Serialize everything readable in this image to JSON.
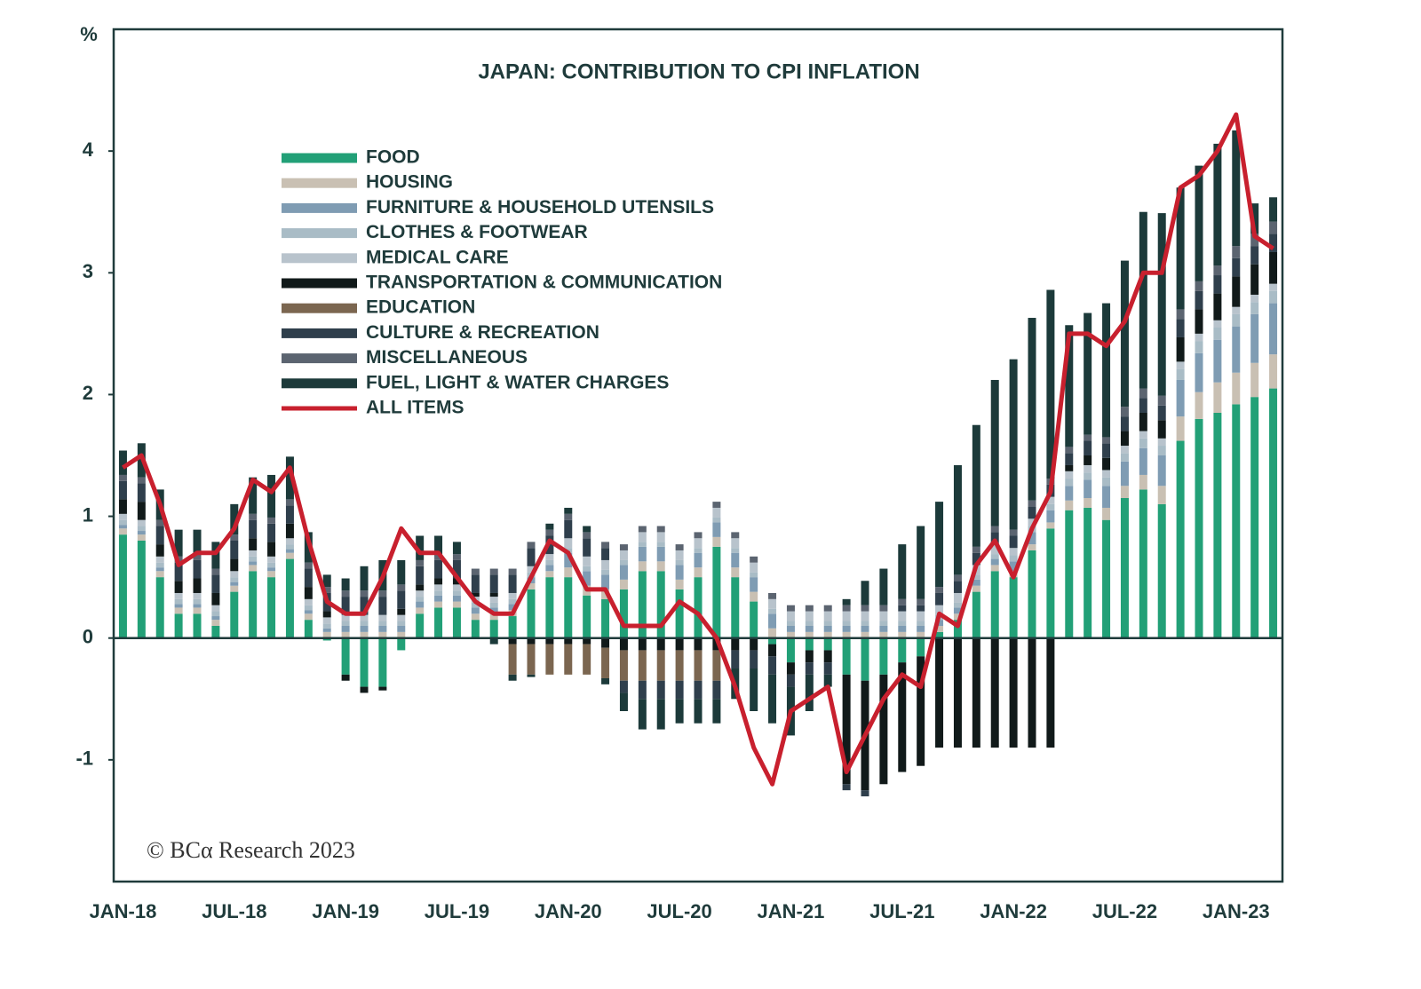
{
  "chart_data": {
    "type": "bar",
    "title": "JAPAN: CONTRIBUTION TO CPI INFLATION",
    "y_unit": "%",
    "source": "© BCα Research 2023",
    "stacked": true,
    "legend": "upper left",
    "ylim": [
      -2,
      5
    ],
    "yticks": [
      -1,
      0,
      1,
      2,
      3,
      4
    ],
    "categories": [
      "JAN-18",
      null,
      null,
      null,
      null,
      null,
      "JUL-18",
      null,
      null,
      null,
      null,
      null,
      "JAN-19",
      null,
      null,
      null,
      null,
      null,
      "JUL-19",
      null,
      null,
      null,
      null,
      null,
      "JAN-20",
      null,
      null,
      null,
      null,
      null,
      "JUL-20",
      null,
      null,
      null,
      null,
      null,
      "JAN-21",
      null,
      null,
      null,
      null,
      null,
      "JUL-21",
      null,
      null,
      null,
      null,
      null,
      "JAN-22",
      null,
      null,
      null,
      null,
      null,
      "JUL-22",
      null,
      null,
      null,
      null,
      null,
      "JAN-23",
      null,
      null
    ],
    "series": [
      {
        "name": "FOOD",
        "type": "bar",
        "color": "#22a077",
        "values": [
          0.85,
          0.8,
          0.5,
          0.2,
          0.2,
          0.1,
          0.38,
          0.55,
          0.5,
          0.65,
          0.15,
          -0.02,
          -0.3,
          -0.4,
          -0.4,
          -0.1,
          0.2,
          0.25,
          0.25,
          0.15,
          0.15,
          0.18,
          0.4,
          0.5,
          0.5,
          0.35,
          0.32,
          0.4,
          0.55,
          0.55,
          0.4,
          0.5,
          0.75,
          0.5,
          0.3,
          -0.05,
          -0.2,
          -0.1,
          -0.1,
          -0.3,
          -0.35,
          -0.3,
          -0.2,
          -0.15,
          0.05,
          0.15,
          0.38,
          0.55,
          0.5,
          0.72,
          0.9,
          1.05,
          1.07,
          0.97,
          1.15,
          1.22,
          1.1,
          1.62,
          1.8,
          1.85,
          1.92,
          1.98,
          2.05
        ]
      },
      {
        "name": "HOUSING",
        "type": "bar",
        "color": "#c9c0b3",
        "values": [
          0.05,
          0.05,
          0.05,
          0.05,
          0.05,
          0.05,
          0.05,
          0.05,
          0.05,
          0.05,
          0.05,
          0.05,
          0.05,
          0.05,
          0.05,
          0.05,
          0.05,
          0.05,
          0.05,
          0.05,
          0.05,
          0.05,
          0.05,
          0.05,
          0.08,
          0.08,
          0.08,
          0.08,
          0.08,
          0.08,
          0.08,
          0.08,
          0.08,
          0.08,
          0.08,
          0.08,
          0.05,
          0.05,
          0.05,
          0.05,
          0.05,
          0.05,
          0.05,
          0.05,
          0.05,
          0.05,
          0.05,
          0.05,
          0.05,
          0.05,
          0.05,
          0.08,
          0.08,
          0.1,
          0.1,
          0.12,
          0.15,
          0.2,
          0.22,
          0.25,
          0.26,
          0.28,
          0.28
        ]
      },
      {
        "name": "FURNITURE & HOUSEHOLD UTENSILS",
        "type": "bar",
        "color": "#7f9cb3",
        "values": [
          0.03,
          0.03,
          0.03,
          0.03,
          0.03,
          0.03,
          0.03,
          0.03,
          0.03,
          0.03,
          0.03,
          0.03,
          0.05,
          0.05,
          0.05,
          0.05,
          0.05,
          0.05,
          0.05,
          0.05,
          0.05,
          0.05,
          0.05,
          0.05,
          0.12,
          0.12,
          0.12,
          0.12,
          0.12,
          0.12,
          0.12,
          0.12,
          0.12,
          0.12,
          0.12,
          0.12,
          0.05,
          0.05,
          0.05,
          0.05,
          0.05,
          0.05,
          0.05,
          0.05,
          0.05,
          0.05,
          0.05,
          0.05,
          0.08,
          0.1,
          0.1,
          0.12,
          0.15,
          0.18,
          0.2,
          0.22,
          0.25,
          0.3,
          0.32,
          0.35,
          0.38,
          0.4,
          0.42
        ]
      },
      {
        "name": "CLOTHES & FOOTWEAR",
        "type": "bar",
        "color": "#a9bcc6",
        "values": [
          0.04,
          0.04,
          0.04,
          0.04,
          0.04,
          0.04,
          0.04,
          0.04,
          0.04,
          0.04,
          0.04,
          0.04,
          0.04,
          0.04,
          0.04,
          0.04,
          0.04,
          0.04,
          0.04,
          0.04,
          0.04,
          0.04,
          0.04,
          0.04,
          0.04,
          0.04,
          0.04,
          0.04,
          0.04,
          0.04,
          0.04,
          0.04,
          0.04,
          0.04,
          0.04,
          0.04,
          0.04,
          0.04,
          0.04,
          0.04,
          0.04,
          0.04,
          0.04,
          0.04,
          0.04,
          0.04,
          0.04,
          0.04,
          0.05,
          0.05,
          0.05,
          0.06,
          0.06,
          0.07,
          0.07,
          0.08,
          0.08,
          0.09,
          0.1,
          0.1,
          0.1,
          0.1,
          0.1
        ]
      },
      {
        "name": "MEDICAL CARE",
        "type": "bar",
        "color": "#b8c3cc",
        "values": [
          0.05,
          0.05,
          0.05,
          0.05,
          0.05,
          0.05,
          0.05,
          0.05,
          0.05,
          0.05,
          0.05,
          0.05,
          0.05,
          0.05,
          0.05,
          0.05,
          0.05,
          0.05,
          0.05,
          0.05,
          0.05,
          0.05,
          0.05,
          0.05,
          0.08,
          0.08,
          0.08,
          0.08,
          0.08,
          0.08,
          0.08,
          0.08,
          0.08,
          0.08,
          0.08,
          0.08,
          0.08,
          0.08,
          0.08,
          0.08,
          0.08,
          0.08,
          0.08,
          0.08,
          0.08,
          0.08,
          0.08,
          0.08,
          0.06,
          0.06,
          0.06,
          0.06,
          0.06,
          0.06,
          0.06,
          0.06,
          0.06,
          0.06,
          0.06,
          0.06,
          0.06,
          0.06,
          0.06
        ]
      },
      {
        "name": "TRANSPORTATION & COMMUNICATION",
        "type": "bar",
        "color": "#111a1a",
        "values": [
          0.12,
          0.15,
          0.1,
          0.1,
          0.12,
          0.1,
          0.1,
          0.1,
          0.12,
          0.12,
          0.1,
          0.05,
          -0.05,
          -0.05,
          -0.03,
          0.05,
          0.05,
          0.05,
          0.05,
          0.03,
          0.03,
          -0.05,
          -0.05,
          -0.05,
          -0.05,
          -0.05,
          -0.08,
          -0.1,
          -0.1,
          -0.1,
          -0.1,
          -0.1,
          -0.1,
          -0.1,
          -0.1,
          -0.1,
          -0.1,
          -0.1,
          -0.1,
          -0.9,
          -0.9,
          -0.9,
          -0.9,
          -0.9,
          -0.9,
          -0.9,
          -0.9,
          -0.9,
          -0.9,
          -0.9,
          -0.9,
          0.05,
          0.08,
          0.1,
          0.12,
          0.15,
          0.15,
          0.2,
          0.2,
          0.22,
          0.25,
          0.25,
          0.26
        ]
      },
      {
        "name": "EDUCATION",
        "type": "bar",
        "color": "#7b6650",
        "values": [
          0,
          0,
          0,
          0,
          0,
          0,
          0,
          0,
          0,
          0,
          0,
          0,
          0,
          0,
          0,
          0,
          0,
          0,
          0,
          0,
          0,
          -0.25,
          -0.25,
          -0.25,
          -0.25,
          -0.25,
          -0.25,
          -0.25,
          -0.25,
          -0.25,
          -0.25,
          -0.25,
          -0.25,
          0,
          0,
          0,
          0,
          0,
          0,
          0,
          0,
          0,
          0,
          0,
          0,
          0,
          0,
          0,
          0,
          0,
          0,
          0,
          0,
          0,
          0,
          0,
          0,
          0,
          0,
          0,
          0,
          0,
          0
        ]
      },
      {
        "name": "CULTURE & RECREATION",
        "type": "bar",
        "color": "#2f3f4c",
        "values": [
          0.15,
          0.15,
          0.15,
          0.15,
          0.15,
          0.15,
          0.15,
          0.15,
          0.15,
          0.15,
          0.15,
          0.15,
          0.15,
          0.15,
          0.15,
          0.15,
          0.15,
          0.15,
          0.15,
          0.15,
          0.15,
          0.15,
          0.15,
          0.15,
          0.15,
          0.15,
          0.1,
          -0.1,
          -0.15,
          -0.15,
          -0.15,
          -0.15,
          -0.15,
          -0.15,
          -0.15,
          -0.15,
          -0.1,
          -0.1,
          -0.1,
          -0.05,
          -0.05,
          0.0,
          0.05,
          0.05,
          0.1,
          0.1,
          0.1,
          0.1,
          0.1,
          0.1,
          0.1,
          0.1,
          0.12,
          0.12,
          0.12,
          0.12,
          0.12,
          0.15,
          0.15,
          0.15,
          0.15,
          0.15,
          0.15
        ]
      },
      {
        "name": "MISCELLANEOUS",
        "type": "bar",
        "color": "#5b6470",
        "values": [
          0.05,
          0.05,
          0.05,
          0.05,
          0.05,
          0.05,
          0.05,
          0.05,
          0.05,
          0.05,
          0.05,
          0.05,
          0.05,
          0.05,
          0.05,
          0.05,
          0.05,
          0.05,
          0.05,
          0.05,
          0.05,
          0.05,
          0.05,
          0.05,
          0.05,
          0.05,
          0.05,
          0.05,
          0.05,
          0.05,
          0.05,
          0.05,
          0.05,
          0.05,
          0.05,
          0.05,
          0.05,
          0.05,
          0.05,
          0.05,
          0.05,
          0.05,
          0.05,
          0.05,
          0.05,
          0.05,
          0.05,
          0.05,
          0.05,
          0.05,
          0.05,
          0.05,
          0.05,
          0.05,
          0.08,
          0.08,
          0.08,
          0.08,
          0.08,
          0.08,
          0.1,
          0.1,
          0.1
        ]
      },
      {
        "name": "FUEL, LIGHT & WATER CHARGES",
        "type": "bar",
        "color": "#1c3a3a",
        "values": [
          0.2,
          0.28,
          0.25,
          0.22,
          0.2,
          0.22,
          0.25,
          0.3,
          0.35,
          0.35,
          0.25,
          0.1,
          0.1,
          0.2,
          0.25,
          0.2,
          0.2,
          0.15,
          0.1,
          0.0,
          -0.05,
          -0.05,
          -0.02,
          0.05,
          0.05,
          0.05,
          -0.05,
          -0.15,
          -0.25,
          -0.25,
          -0.2,
          -0.2,
          -0.2,
          -0.25,
          -0.35,
          -0.4,
          -0.4,
          -0.3,
          -0.1,
          0.05,
          0.2,
          0.3,
          0.45,
          0.6,
          0.7,
          0.9,
          1.0,
          1.2,
          1.4,
          1.5,
          1.55,
          1.0,
          1.0,
          1.1,
          1.2,
          1.45,
          1.5,
          1.0,
          0.95,
          1.0,
          0.95,
          0.25,
          0.2
        ]
      },
      {
        "name": "ALL ITEMS",
        "type": "line",
        "color": "#c8202e",
        "values": [
          1.4,
          1.5,
          1.1,
          0.6,
          0.7,
          0.7,
          0.9,
          1.3,
          1.2,
          1.4,
          0.8,
          0.3,
          0.2,
          0.2,
          0.5,
          0.9,
          0.7,
          0.7,
          0.5,
          0.3,
          0.2,
          0.2,
          0.5,
          0.8,
          0.7,
          0.4,
          0.4,
          0.1,
          0.1,
          0.1,
          0.3,
          0.2,
          0.0,
          -0.4,
          -0.9,
          -1.2,
          -0.6,
          -0.5,
          -0.4,
          -1.1,
          -0.8,
          -0.5,
          -0.3,
          -0.4,
          0.2,
          0.1,
          0.6,
          0.8,
          0.5,
          0.9,
          1.2,
          2.5,
          2.5,
          2.4,
          2.6,
          3.0,
          3.0,
          3.7,
          3.8,
          4.0,
          4.3,
          3.3,
          3.2
        ]
      }
    ]
  }
}
